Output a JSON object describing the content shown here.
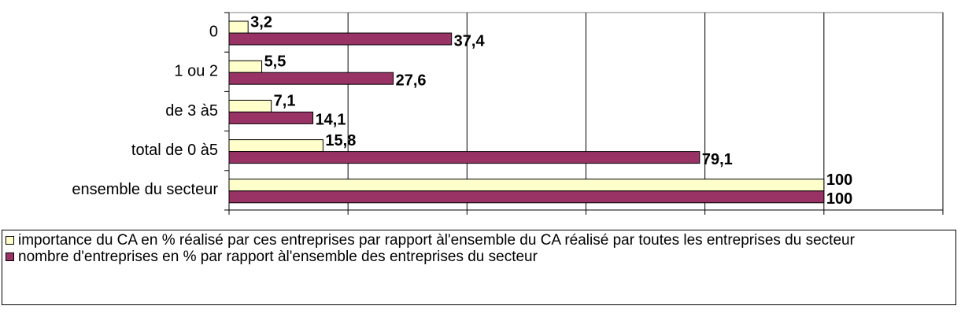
{
  "chart_data": {
    "type": "barh",
    "categories": [
      "0",
      "1 ou 2",
      "de 3 à5",
      "total de 0 à5",
      "ensemble du secteur"
    ],
    "series": [
      {
        "name": "importance du CA en % réalisé par ces entreprises par rapport àl'ensemble du CA réalisé par toutes les entreprises du secteur",
        "color": "#ffffcc",
        "values": [
          3.2,
          5.5,
          7.1,
          15.8,
          100
        ],
        "value_labels": [
          "3,2",
          "5,5",
          "7,1",
          "15,8",
          "100"
        ]
      },
      {
        "name": "nombre d'entreprises en % par rapport àl'ensemble des entreprises du secteur",
        "color": "#993366",
        "values": [
          37.4,
          27.6,
          14.1,
          79.1,
          100
        ],
        "value_labels": [
          "37,4",
          "27,6",
          "14,1",
          "79,1",
          "100"
        ]
      }
    ],
    "xlim": [
      0,
      120
    ],
    "xticks": [
      0,
      20,
      40,
      60,
      80,
      100,
      120
    ],
    "grid": true
  }
}
